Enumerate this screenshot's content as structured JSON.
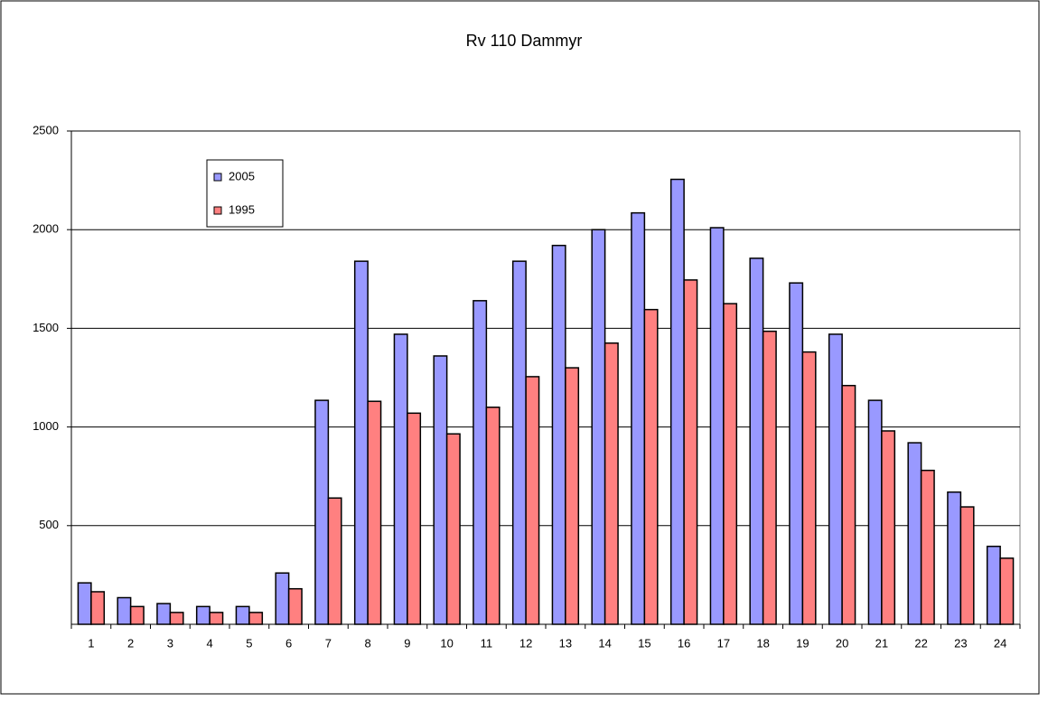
{
  "chart_data": {
    "type": "bar",
    "title": "Rv 110 Dammyr",
    "categories": [
      "1",
      "2",
      "3",
      "4",
      "5",
      "6",
      "7",
      "8",
      "9",
      "10",
      "11",
      "12",
      "13",
      "14",
      "15",
      "16",
      "17",
      "18",
      "19",
      "20",
      "21",
      "22",
      "23",
      "24"
    ],
    "series": [
      {
        "name": "2005",
        "color": "#9999ff",
        "values": [
          210,
          135,
          105,
          90,
          90,
          260,
          1135,
          1840,
          1470,
          1360,
          1640,
          1840,
          1920,
          2000,
          2085,
          2255,
          2010,
          1855,
          1730,
          1470,
          1135,
          920,
          670,
          395
        ]
      },
      {
        "name": "1995",
        "color": "#ff8080",
        "values": [
          165,
          90,
          60,
          60,
          60,
          180,
          640,
          1130,
          1070,
          965,
          1100,
          1255,
          1300,
          1425,
          1595,
          1745,
          1625,
          1485,
          1380,
          1210,
          980,
          780,
          595,
          335
        ]
      }
    ],
    "ylim": [
      0,
      2500
    ],
    "yticks": [
      500,
      1000,
      1500,
      2000,
      2500
    ],
    "grid": true,
    "legend_position": "top-left"
  }
}
